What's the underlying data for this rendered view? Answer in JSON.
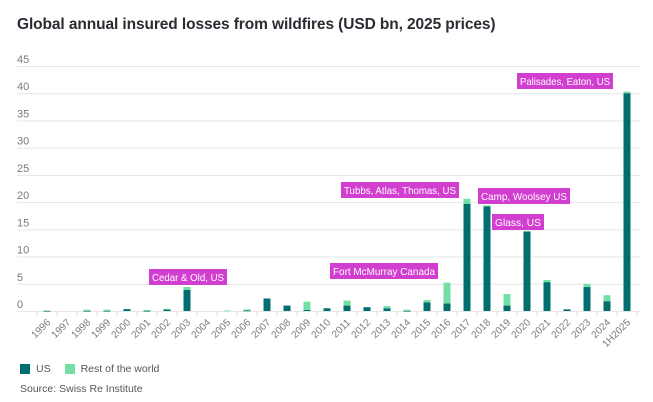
{
  "title": "Global annual insured losses from wildfires (USD bn, 2025 prices)",
  "source": "Source: Swiss Re Institute",
  "colors": {
    "us": "#006e6e",
    "rest_of_world": "#72e0a4",
    "annotation_bg": "#d23ed0",
    "annotation_text": "#ffffff",
    "grid": "#e6e6e6"
  },
  "chart_data": {
    "type": "bar",
    "stacked": true,
    "title": "Global annual insured losses from wildfires (USD bn, 2025 prices)",
    "xlabel": "",
    "ylabel": "",
    "ylim": [
      0,
      45
    ],
    "yticks": [
      0,
      5,
      10,
      15,
      20,
      25,
      30,
      35,
      40,
      45
    ],
    "grid": true,
    "legend_position": "bottom-left",
    "categories": [
      "1996",
      "1997",
      "1998",
      "1999",
      "2000",
      "2001",
      "2002",
      "2003",
      "2004",
      "2005",
      "2006",
      "2007",
      "2008",
      "2009",
      "2010",
      "2011",
      "2012",
      "2013",
      "2014",
      "2015",
      "2016",
      "2017",
      "2018",
      "2019",
      "2020",
      "2021",
      "2022",
      "2023",
      "2024",
      "1H2025"
    ],
    "series": [
      {
        "name": "US",
        "color": "#006e6e",
        "values": [
          0.05,
          0.0,
          0.05,
          0.05,
          0.35,
          0.05,
          0.3,
          3.9,
          0.0,
          0.0,
          0.1,
          2.3,
          1.0,
          0.2,
          0.5,
          1.0,
          0.7,
          0.5,
          0.05,
          1.6,
          1.4,
          19.7,
          19.2,
          1.0,
          14.6,
          5.3,
          0.3,
          4.4,
          1.8,
          40.0
        ]
      },
      {
        "name": "Rest of the world",
        "color": "#72e0a4",
        "values": [
          0.0,
          0.0,
          0.2,
          0.2,
          0.0,
          0.15,
          0.1,
          0.5,
          0.0,
          0.1,
          0.2,
          0.0,
          0.0,
          1.5,
          0.0,
          0.9,
          0.0,
          0.4,
          0.2,
          0.4,
          3.8,
          0.9,
          0.2,
          2.1,
          0.1,
          0.4,
          0.0,
          0.6,
          1.1,
          0.3
        ]
      }
    ],
    "annotations": [
      {
        "label": "Cedar & Old, US",
        "category": "2003"
      },
      {
        "label": "Fort McMurray Canada",
        "category": "2016"
      },
      {
        "label": "Tubbs, Atlas, Thomas, US",
        "category": "2017"
      },
      {
        "label": "Camp, Woolsey US",
        "category": "2018"
      },
      {
        "label": "Glass, US",
        "category": "2020"
      },
      {
        "label": "Palisades, Eaton, US",
        "category": "1H2025"
      }
    ]
  },
  "legend": {
    "items": [
      {
        "label": "US",
        "color": "#006e6e"
      },
      {
        "label": "Rest of the world",
        "color": "#72e0a4"
      }
    ]
  }
}
